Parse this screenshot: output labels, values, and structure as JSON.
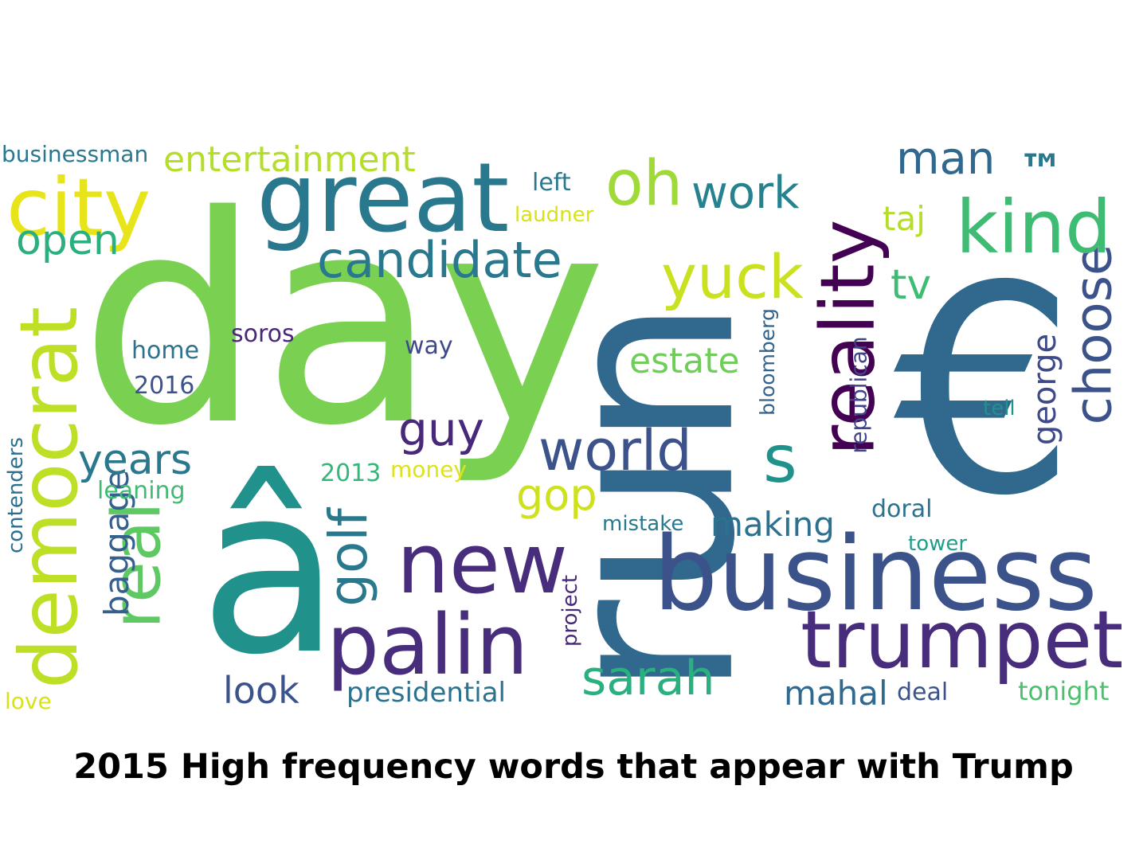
{
  "caption": "2015 High frequency words that appear with Trump",
  "words": {
    "day": "day",
    "run": "run",
    "euro": "€",
    "a_circ": "â",
    "business": "business",
    "great": "great",
    "palin": "palin",
    "trumpet": "trumpet",
    "reality": "reality",
    "democrat": "democrat",
    "new": "new",
    "city": "city",
    "kind": "kind",
    "real": "real",
    "candidate": "candidate",
    "oh": "oh",
    "yuck": "yuck",
    "world": "world",
    "s": "s",
    "choose": "choose",
    "sarah": "sarah",
    "golf": "golf",
    "entertainment": "entertainment",
    "man": "man",
    "work": "work",
    "tm": "™",
    "years": "years",
    "gop": "gop",
    "guy": "guy",
    "open": "open",
    "estate": "estate",
    "making": "making",
    "look": "look",
    "mahal": "mahal",
    "baggage": "baggage",
    "george": "george",
    "tv": "tv",
    "republican": "republican",
    "presidential": "presidential",
    "taj": "taj",
    "businessman": "businessman",
    "bloomberg": "bloomberg",
    "doral": "doral",
    "tonight": "tonight",
    "contenders": "contenders",
    "home": "home",
    "soros": "soros",
    "way": "way",
    "left": "left",
    "laudner": "laudner",
    "y2016": "2016",
    "y2013": "2013",
    "money": "money",
    "leaning": "leaning",
    "project": "project",
    "mistake": "mistake",
    "tell": "tell",
    "tower": "tower",
    "deal": "deal",
    "love": "love"
  },
  "colors": {
    "lime": "#7ad151",
    "yellow": "#e7e419",
    "yellow_green": "#bddf26",
    "teal": "#2a788e",
    "blue": "#31688e",
    "slate": "#3b528b",
    "indigo": "#472d7b",
    "purple": "#440154",
    "sea": "#21918c",
    "green": "#35b779",
    "mint": "#22a884"
  }
}
